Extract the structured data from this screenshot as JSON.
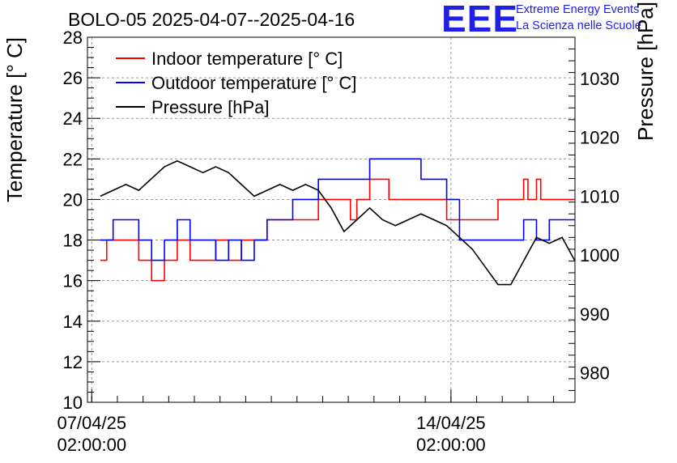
{
  "chart_data": {
    "type": "line",
    "title": "BOLO-05 2025-04-07--2025-04-16",
    "ylabel": "Temperature [° C]",
    "y2label": "Pressure [hPa]",
    "xlabel": "",
    "xlim": [
      "2025-04-07T00:00",
      "2025-04-16T12:00"
    ],
    "ylim": [
      10,
      28
    ],
    "y2lim": [
      975,
      1037
    ],
    "grid": true,
    "legend_position": "top-left",
    "x_ticks": [
      {
        "line1": "07/04/25",
        "line2": "02:00:00",
        "t": "2025-04-07T02:00"
      },
      {
        "line1": "14/04/25",
        "line2": "02:00:00",
        "t": "2025-04-14T02:00"
      }
    ],
    "y_ticks": [
      10,
      12,
      14,
      16,
      18,
      20,
      22,
      24,
      26,
      28
    ],
    "y2_ticks": [
      980,
      990,
      1000,
      1010,
      1020,
      1030
    ],
    "series": [
      {
        "name": "Indoor temperature [° C]",
        "color": "#ff0000",
        "axis": "left",
        "step": true,
        "points": [
          [
            "2025-04-07T06:00",
            17
          ],
          [
            "2025-04-07T09:00",
            18
          ],
          [
            "2025-04-08T00:00",
            17
          ],
          [
            "2025-04-08T06:00",
            16
          ],
          [
            "2025-04-08T12:00",
            17
          ],
          [
            "2025-04-08T18:00",
            18
          ],
          [
            "2025-04-09T00:00",
            17
          ],
          [
            "2025-04-09T12:00",
            18
          ],
          [
            "2025-04-09T18:00",
            17
          ],
          [
            "2025-04-10T00:00",
            18
          ],
          [
            "2025-04-10T12:00",
            19
          ],
          [
            "2025-04-11T12:00",
            20
          ],
          [
            "2025-04-12T03:00",
            19
          ],
          [
            "2025-04-12T06:00",
            20
          ],
          [
            "2025-04-12T12:00",
            21
          ],
          [
            "2025-04-12T21:00",
            20
          ],
          [
            "2025-04-14T00:00",
            19
          ],
          [
            "2025-04-15T00:00",
            20
          ],
          [
            "2025-04-15T12:00",
            21
          ],
          [
            "2025-04-15T14:00",
            20
          ],
          [
            "2025-04-15T18:00",
            21
          ],
          [
            "2025-04-15T20:00",
            20
          ],
          [
            "2025-04-16T12:00",
            20
          ]
        ]
      },
      {
        "name": "Outdoor temperature [° C]",
        "color": "#0000ff",
        "axis": "left",
        "step": true,
        "points": [
          [
            "2025-04-07T06:00",
            18
          ],
          [
            "2025-04-07T12:00",
            19
          ],
          [
            "2025-04-08T00:00",
            18
          ],
          [
            "2025-04-08T06:00",
            17
          ],
          [
            "2025-04-08T12:00",
            18
          ],
          [
            "2025-04-08T18:00",
            19
          ],
          [
            "2025-04-09T00:00",
            18
          ],
          [
            "2025-04-09T12:00",
            17
          ],
          [
            "2025-04-09T18:00",
            18
          ],
          [
            "2025-04-10T00:00",
            17
          ],
          [
            "2025-04-10T06:00",
            18
          ],
          [
            "2025-04-10T12:00",
            19
          ],
          [
            "2025-04-11T00:00",
            20
          ],
          [
            "2025-04-11T12:00",
            21
          ],
          [
            "2025-04-12T12:00",
            22
          ],
          [
            "2025-04-13T12:00",
            21
          ],
          [
            "2025-04-14T00:00",
            20
          ],
          [
            "2025-04-14T06:00",
            18
          ],
          [
            "2025-04-15T12:00",
            19
          ],
          [
            "2025-04-15T18:00",
            18
          ],
          [
            "2025-04-16T00:00",
            19
          ],
          [
            "2025-04-16T12:00",
            19
          ]
        ]
      },
      {
        "name": "Pressure [hPa]",
        "color": "#000000",
        "axis": "right",
        "step": false,
        "points": [
          [
            "2025-04-07T06:00",
            1010
          ],
          [
            "2025-04-07T12:00",
            1011
          ],
          [
            "2025-04-07T18:00",
            1012
          ],
          [
            "2025-04-08T00:00",
            1011
          ],
          [
            "2025-04-08T06:00",
            1013
          ],
          [
            "2025-04-08T12:00",
            1015
          ],
          [
            "2025-04-08T18:00",
            1016
          ],
          [
            "2025-04-09T00:00",
            1015
          ],
          [
            "2025-04-09T06:00",
            1014
          ],
          [
            "2025-04-09T12:00",
            1015
          ],
          [
            "2025-04-09T18:00",
            1014
          ],
          [
            "2025-04-10T00:00",
            1012
          ],
          [
            "2025-04-10T06:00",
            1010
          ],
          [
            "2025-04-10T12:00",
            1011
          ],
          [
            "2025-04-10T18:00",
            1012
          ],
          [
            "2025-04-11T00:00",
            1011
          ],
          [
            "2025-04-11T06:00",
            1012
          ],
          [
            "2025-04-11T12:00",
            1011
          ],
          [
            "2025-04-11T18:00",
            1008
          ],
          [
            "2025-04-12T00:00",
            1004
          ],
          [
            "2025-04-12T06:00",
            1006
          ],
          [
            "2025-04-12T12:00",
            1008
          ],
          [
            "2025-04-12T18:00",
            1006
          ],
          [
            "2025-04-13T00:00",
            1005
          ],
          [
            "2025-04-13T06:00",
            1006
          ],
          [
            "2025-04-13T12:00",
            1007
          ],
          [
            "2025-04-13T18:00",
            1006
          ],
          [
            "2025-04-14T00:00",
            1005
          ],
          [
            "2025-04-14T06:00",
            1003
          ],
          [
            "2025-04-14T12:00",
            1001
          ],
          [
            "2025-04-14T18:00",
            998
          ],
          [
            "2025-04-15T00:00",
            995
          ],
          [
            "2025-04-15T06:00",
            995
          ],
          [
            "2025-04-15T12:00",
            999
          ],
          [
            "2025-04-15T18:00",
            1003
          ],
          [
            "2025-04-16T00:00",
            1002
          ],
          [
            "2025-04-16T06:00",
            1003
          ],
          [
            "2025-04-16T12:00",
            999
          ]
        ]
      }
    ]
  },
  "logo": {
    "mark": "EEE",
    "line1": "Extreme Energy Events",
    "line2": "La Scienza nelle Scuole",
    "color": "#1f1fe6"
  }
}
